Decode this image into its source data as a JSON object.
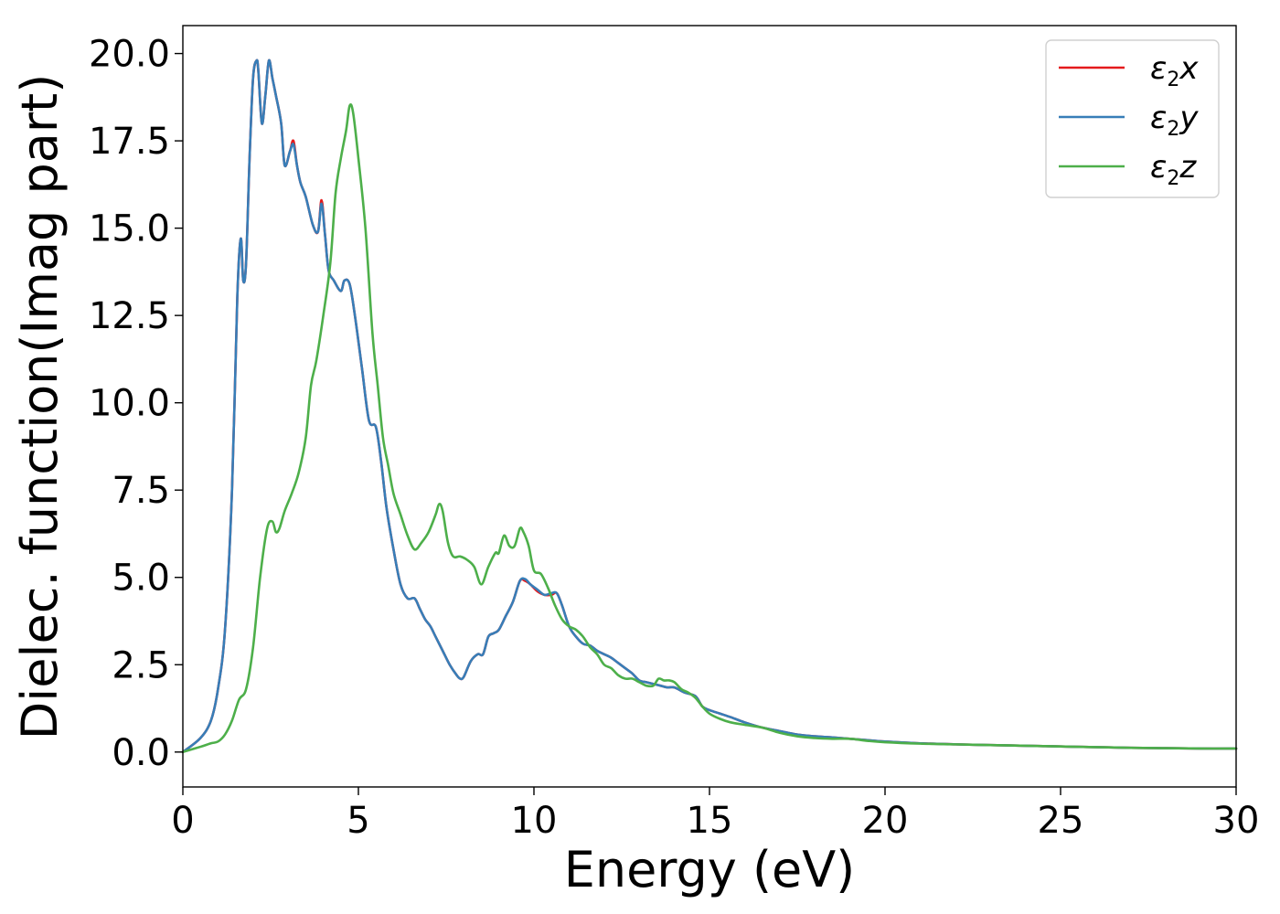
{
  "chart_data": {
    "type": "line",
    "title": "",
    "xlabel": "Energy (eV)",
    "ylabel": "Dielec. function(Imag part)",
    "xlim": [
      0,
      30
    ],
    "ylim": [
      -1.0,
      20.8
    ],
    "xticks": [
      0,
      5,
      10,
      15,
      20,
      25,
      30
    ],
    "xtick_labels": [
      "0",
      "5",
      "10",
      "15",
      "20",
      "25",
      "30"
    ],
    "yticks": [
      0,
      2.5,
      5,
      7.5,
      10,
      12.5,
      15,
      17.5,
      20
    ],
    "ytick_labels": [
      "0.0",
      "2.5",
      "5.0",
      "7.5",
      "10.0",
      "12.5",
      "15.0",
      "17.5",
      "20.0"
    ],
    "grid": false,
    "legend_position": "top-right",
    "series": [
      {
        "name": "ε2x",
        "legend_main": "ε",
        "legend_sub": "2",
        "legend_var": "x",
        "color": "#e41a1c",
        "x": [
          0,
          0.5,
          0.8,
          1.0,
          1.2,
          1.4,
          1.55,
          1.65,
          1.72,
          1.8,
          1.9,
          2.0,
          2.1,
          2.15,
          2.25,
          2.35,
          2.45,
          2.55,
          2.65,
          2.8,
          2.9,
          3.05,
          3.15,
          3.25,
          3.35,
          3.5,
          3.7,
          3.85,
          3.95,
          4.05,
          4.15,
          4.3,
          4.5,
          4.6,
          4.75,
          4.9,
          5.1,
          5.3,
          5.5,
          5.65,
          5.8,
          6.0,
          6.2,
          6.4,
          6.6,
          6.75,
          6.9,
          7.05,
          7.2,
          7.4,
          7.6,
          7.8,
          7.9,
          8.0,
          8.2,
          8.4,
          8.55,
          8.7,
          8.85,
          9.0,
          9.2,
          9.4,
          9.6,
          9.75,
          9.9,
          10.1,
          10.3,
          10.5,
          10.65,
          10.8,
          11.0,
          11.2,
          11.4,
          11.6,
          11.8,
          12.0,
          12.2,
          12.4,
          12.6,
          12.8,
          13.0,
          13.2,
          13.4,
          13.6,
          13.8,
          14.0,
          14.3,
          14.6,
          14.8,
          15.0,
          15.3,
          15.6,
          16.0,
          16.5,
          17.0,
          17.5,
          18.0,
          18.5,
          19.0,
          19.5,
          20.0,
          21.0,
          22.0,
          23.0,
          24.0,
          25.0,
          26.0,
          27.0,
          28.0,
          29.0,
          30.0
        ],
        "values": [
          0,
          0.4,
          0.9,
          1.8,
          3.5,
          7.5,
          13.0,
          14.7,
          13.5,
          14.0,
          17.0,
          19.3,
          19.8,
          19.5,
          18.0,
          18.8,
          19.8,
          19.3,
          18.8,
          18.0,
          16.8,
          17.2,
          17.5,
          16.8,
          16.3,
          15.9,
          15.1,
          14.9,
          15.8,
          14.8,
          13.8,
          13.5,
          13.2,
          13.5,
          13.4,
          12.5,
          11.0,
          9.5,
          9.3,
          8.3,
          7.0,
          5.8,
          4.8,
          4.4,
          4.4,
          4.1,
          3.8,
          3.6,
          3.3,
          2.9,
          2.5,
          2.2,
          2.1,
          2.15,
          2.6,
          2.8,
          2.8,
          3.3,
          3.4,
          3.5,
          3.9,
          4.3,
          4.9,
          4.9,
          4.8,
          4.6,
          4.5,
          4.5,
          4.55,
          4.2,
          3.6,
          3.3,
          3.1,
          3.05,
          2.9,
          2.8,
          2.7,
          2.55,
          2.4,
          2.25,
          2.05,
          2.0,
          1.95,
          1.9,
          1.85,
          1.85,
          1.7,
          1.6,
          1.3,
          1.2,
          1.1,
          1.0,
          0.85,
          0.7,
          0.6,
          0.5,
          0.45,
          0.42,
          0.38,
          0.34,
          0.3,
          0.25,
          0.22,
          0.2,
          0.18,
          0.16,
          0.14,
          0.12,
          0.11,
          0.1,
          0.1
        ]
      },
      {
        "name": "ε2y",
        "legend_main": "ε",
        "legend_sub": "2",
        "legend_var": "y",
        "color": "#377eb8",
        "x": [
          0,
          0.5,
          0.8,
          1.0,
          1.2,
          1.4,
          1.55,
          1.65,
          1.72,
          1.8,
          1.9,
          2.0,
          2.1,
          2.15,
          2.25,
          2.35,
          2.45,
          2.55,
          2.65,
          2.8,
          2.9,
          3.05,
          3.15,
          3.25,
          3.35,
          3.5,
          3.7,
          3.85,
          3.95,
          4.05,
          4.15,
          4.3,
          4.5,
          4.6,
          4.75,
          4.9,
          5.1,
          5.3,
          5.5,
          5.65,
          5.8,
          6.0,
          6.2,
          6.4,
          6.6,
          6.75,
          6.9,
          7.05,
          7.2,
          7.4,
          7.6,
          7.8,
          7.9,
          8.0,
          8.2,
          8.4,
          8.55,
          8.7,
          8.85,
          9.0,
          9.2,
          9.4,
          9.6,
          9.75,
          9.9,
          10.1,
          10.3,
          10.5,
          10.65,
          10.8,
          11.0,
          11.2,
          11.4,
          11.6,
          11.8,
          12.0,
          12.2,
          12.4,
          12.6,
          12.8,
          13.0,
          13.2,
          13.4,
          13.6,
          13.8,
          14.0,
          14.3,
          14.6,
          14.8,
          15.0,
          15.3,
          15.6,
          16.0,
          16.5,
          17.0,
          17.5,
          18.0,
          18.5,
          19.0,
          19.5,
          20.0,
          21.0,
          22.0,
          23.0,
          24.0,
          25.0,
          26.0,
          27.0,
          28.0,
          29.0,
          30.0
        ],
        "values": [
          0,
          0.4,
          0.9,
          1.8,
          3.5,
          7.5,
          13.0,
          14.7,
          13.5,
          14.0,
          17.0,
          19.3,
          19.8,
          19.5,
          18.0,
          18.8,
          19.8,
          19.3,
          18.8,
          18.0,
          16.8,
          17.2,
          17.4,
          16.8,
          16.3,
          15.9,
          15.1,
          14.9,
          15.7,
          14.8,
          13.8,
          13.5,
          13.2,
          13.5,
          13.4,
          12.5,
          11.0,
          9.5,
          9.3,
          8.3,
          7.0,
          5.8,
          4.8,
          4.4,
          4.4,
          4.1,
          3.8,
          3.6,
          3.3,
          2.9,
          2.5,
          2.2,
          2.1,
          2.15,
          2.6,
          2.8,
          2.8,
          3.3,
          3.4,
          3.5,
          3.9,
          4.3,
          4.9,
          4.95,
          4.8,
          4.65,
          4.5,
          4.55,
          4.55,
          4.2,
          3.6,
          3.3,
          3.1,
          3.05,
          2.9,
          2.8,
          2.7,
          2.55,
          2.4,
          2.25,
          2.05,
          2.0,
          1.95,
          1.9,
          1.85,
          1.85,
          1.7,
          1.6,
          1.3,
          1.2,
          1.1,
          1.0,
          0.85,
          0.7,
          0.6,
          0.5,
          0.45,
          0.42,
          0.38,
          0.34,
          0.3,
          0.25,
          0.22,
          0.2,
          0.18,
          0.16,
          0.14,
          0.12,
          0.11,
          0.1,
          0.1
        ]
      },
      {
        "name": "ε2z",
        "legend_main": "ε",
        "legend_sub": "2",
        "legend_var": "z",
        "color": "#4daf4a",
        "x": [
          0,
          0.5,
          0.8,
          1.0,
          1.2,
          1.4,
          1.6,
          1.8,
          2.0,
          2.2,
          2.4,
          2.55,
          2.65,
          2.75,
          2.9,
          3.1,
          3.3,
          3.5,
          3.65,
          3.8,
          4.0,
          4.2,
          4.35,
          4.5,
          4.65,
          4.75,
          4.85,
          5.0,
          5.2,
          5.4,
          5.55,
          5.7,
          5.85,
          6.0,
          6.2,
          6.4,
          6.6,
          6.8,
          7.0,
          7.2,
          7.3,
          7.4,
          7.55,
          7.7,
          7.9,
          8.1,
          8.3,
          8.5,
          8.7,
          8.9,
          9.0,
          9.15,
          9.3,
          9.45,
          9.6,
          9.7,
          9.85,
          10.0,
          10.2,
          10.4,
          10.6,
          10.8,
          11.0,
          11.2,
          11.4,
          11.6,
          11.8,
          12.0,
          12.2,
          12.4,
          12.6,
          12.8,
          13.0,
          13.2,
          13.4,
          13.55,
          13.7,
          13.85,
          14.0,
          14.2,
          14.4,
          14.6,
          14.8,
          15.0,
          15.3,
          15.6,
          16.0,
          16.5,
          17.0,
          17.5,
          18.0,
          18.5,
          19.0,
          19.5,
          20.0,
          21.0,
          22.0,
          23.0,
          24.0,
          25.0,
          26.0,
          27.0,
          28.0,
          29.0,
          30.0
        ],
        "values": [
          0,
          0.15,
          0.25,
          0.3,
          0.5,
          0.9,
          1.5,
          1.8,
          3.0,
          5.0,
          6.4,
          6.6,
          6.3,
          6.4,
          6.9,
          7.4,
          8.0,
          9.0,
          10.5,
          11.2,
          12.5,
          14.0,
          16.0,
          17.0,
          17.8,
          18.5,
          18.3,
          17.0,
          15.0,
          12.0,
          10.5,
          9.0,
          8.2,
          7.4,
          6.8,
          6.2,
          5.8,
          6.0,
          6.3,
          6.8,
          7.1,
          6.9,
          6.0,
          5.6,
          5.6,
          5.5,
          5.3,
          4.8,
          5.3,
          5.7,
          5.7,
          6.2,
          5.9,
          5.9,
          6.4,
          6.3,
          5.9,
          5.2,
          5.1,
          4.7,
          4.2,
          3.8,
          3.6,
          3.5,
          3.3,
          3.0,
          2.8,
          2.5,
          2.4,
          2.2,
          2.1,
          2.1,
          2.0,
          1.9,
          1.9,
          2.1,
          2.05,
          2.05,
          2.0,
          1.8,
          1.7,
          1.55,
          1.3,
          1.1,
          0.95,
          0.85,
          0.78,
          0.7,
          0.55,
          0.45,
          0.4,
          0.38,
          0.38,
          0.32,
          0.28,
          0.24,
          0.22,
          0.2,
          0.18,
          0.16,
          0.14,
          0.12,
          0.11,
          0.1,
          0.1
        ]
      }
    ]
  }
}
